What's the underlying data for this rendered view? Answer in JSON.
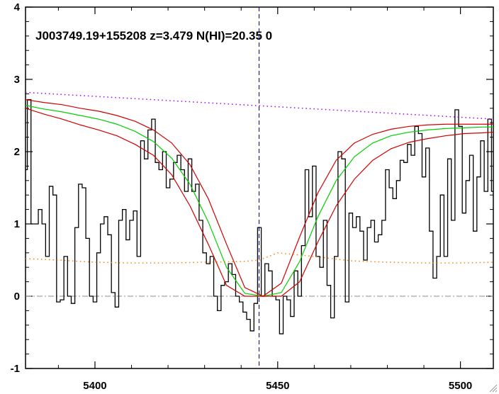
{
  "chart_data": {
    "type": "line",
    "title": "J003749.19+155208 z=3.479 N(HI)=20.35 0",
    "xlabel": "",
    "ylabel": "",
    "xlim": [
      5381,
      5509
    ],
    "ylim": [
      -1.0,
      4.0
    ],
    "xticks": [
      "5400",
      "5450",
      "5500"
    ],
    "yticks": [
      "-1",
      "0",
      "1",
      "2",
      "3",
      "4"
    ],
    "grid": false,
    "legend": "none",
    "reference_lines": {
      "zero_level": 0,
      "line_center_x": 5444.9
    },
    "colors": {
      "flux": "#000000",
      "model": "#00d000",
      "model_bounds": "#d00000",
      "continuum": "#a000ff",
      "error": "#ff7f00",
      "zero": "#888888",
      "center": "#0000cc"
    },
    "series": [
      {
        "style": "step",
        "x": [
          5381,
          5382,
          5383,
          5384,
          5385,
          5386,
          5387,
          5388,
          5389,
          5390,
          5391,
          5392,
          5393,
          5394,
          5395,
          5396,
          5397,
          5398,
          5399,
          5400,
          5401,
          5402,
          5403,
          5404,
          5405,
          5406,
          5407,
          5408,
          5409,
          5410,
          5411,
          5412,
          5413,
          5414,
          5415,
          5416,
          5417,
          5418,
          5419,
          5420,
          5421,
          5422,
          5423,
          5424,
          5425,
          5426,
          5427,
          5428,
          5429,
          5430,
          5431,
          5432,
          5433,
          5434,
          5435,
          5436,
          5437,
          5438,
          5439,
          5440,
          5441,
          5442,
          5443,
          5444,
          5445,
          5446,
          5447,
          5448,
          5449,
          5450,
          5451,
          5452,
          5453,
          5454,
          5455,
          5456,
          5457,
          5458,
          5459,
          5460,
          5461,
          5462,
          5463,
          5464,
          5465,
          5466,
          5467,
          5468,
          5469,
          5470,
          5471,
          5472,
          5473,
          5474,
          5475,
          5476,
          5477,
          5478,
          5479,
          5480,
          5481,
          5482,
          5483,
          5484,
          5485,
          5486,
          5487,
          5488,
          5489,
          5490,
          5491,
          5492,
          5493,
          5494,
          5495,
          5496,
          5497,
          5498,
          5499,
          5500,
          5501,
          5502,
          5503,
          5504,
          5505,
          5506,
          5507,
          5508,
          5509
        ],
        "y": [
          1.75,
          2.72,
          1.0,
          1.0,
          1.2,
          1.0,
          0.55,
          1.52,
          1.4,
          -0.08,
          -0.05,
          0.55,
          0.0,
          -0.1,
          0.95,
          1.55,
          1.5,
          0.8,
          0.0,
          -0.08,
          0.6,
          1.0,
          1.1,
          0.85,
          0.05,
          -0.15,
          1.05,
          1.2,
          0.78,
          1.05,
          1.18,
          0.55,
          2.15,
          1.9,
          2.3,
          2.45,
          1.85,
          1.75,
          2.0,
          1.5,
          1.62,
          1.85,
          1.95,
          1.75,
          1.45,
          1.9,
          1.45,
          1.55,
          1.05,
          0.6,
          0.45,
          0.55,
          0.0,
          -0.2,
          0.15,
          0.2,
          0.45,
          0.3,
          0.0,
          -0.08,
          -0.22,
          -0.32,
          -0.48,
          -0.1,
          0.95,
          0.0,
          0.45,
          0.35,
          0.0,
          -0.05,
          -0.52,
          0.0,
          -0.05,
          -0.28,
          0.35,
          0.0,
          0.7,
          1.75,
          1.1,
          1.8,
          0.55,
          0.4,
          1.05,
          0.15,
          -0.3,
          0.55,
          2.0,
          1.9,
          -0.08,
          1.15,
          0.95,
          1.1,
          0.9,
          0.5,
          0.95,
          1.05,
          0.75,
          0.85,
          1.05,
          1.75,
          1.5,
          1.35,
          1.6,
          1.88,
          1.85,
          2.1,
          1.95,
          2.35,
          2.25,
          1.65,
          2.05,
          0.9,
          0.25,
          0.55,
          1.4,
          0.55,
          1.9,
          1.05,
          2.58,
          2.35,
          1.15,
          1.6,
          1.95,
          0.9,
          1.65,
          2.15,
          1.45,
          2.45,
          1.45
        ]
      },
      {
        "style": "line",
        "x": [
          5381,
          5386,
          5391,
          5396,
          5401,
          5406,
          5411,
          5416,
          5421,
          5426,
          5431,
          5436,
          5441,
          5446,
          5451,
          5456,
          5461,
          5466,
          5471,
          5476,
          5481,
          5486,
          5491,
          5496,
          5501,
          5506,
          5509
        ],
        "y": [
          2.64,
          2.59,
          2.55,
          2.5,
          2.45,
          2.38,
          2.28,
          2.14,
          1.91,
          1.55,
          1.03,
          0.4,
          0.04,
          0.0,
          0.05,
          0.48,
          1.1,
          1.6,
          1.93,
          2.12,
          2.22,
          2.27,
          2.3,
          2.32,
          2.33,
          2.34,
          2.34
        ]
      },
      {
        "style": "line",
        "x": [
          5381,
          5386,
          5391,
          5396,
          5401,
          5406,
          5411,
          5416,
          5421,
          5426,
          5431,
          5436,
          5441,
          5446,
          5451,
          5456,
          5461,
          5466,
          5471,
          5476,
          5481,
          5486,
          5491,
          5496,
          5501,
          5506,
          5509
        ],
        "y": [
          2.72,
          2.68,
          2.65,
          2.6,
          2.56,
          2.5,
          2.42,
          2.3,
          2.12,
          1.82,
          1.35,
          0.72,
          0.12,
          0.0,
          0.18,
          0.82,
          1.43,
          1.88,
          2.12,
          2.24,
          2.31,
          2.35,
          2.37,
          2.38,
          2.38,
          2.38,
          2.38
        ]
      },
      {
        "style": "line",
        "x": [
          5381,
          5386,
          5391,
          5396,
          5401,
          5406,
          5411,
          5416,
          5421,
          5426,
          5431,
          5436,
          5441,
          5446,
          5451,
          5456,
          5461,
          5466,
          5471,
          5476,
          5481,
          5486,
          5491,
          5496,
          5501,
          5506,
          5509
        ],
        "y": [
          2.6,
          2.52,
          2.45,
          2.37,
          2.3,
          2.22,
          2.1,
          1.95,
          1.68,
          1.25,
          0.72,
          0.15,
          0.0,
          0.0,
          0.0,
          0.2,
          0.75,
          1.25,
          1.62,
          1.88,
          2.04,
          2.13,
          2.18,
          2.22,
          2.25,
          2.26,
          2.27
        ]
      },
      {
        "style": "dotted",
        "x": [
          5381,
          5509
        ],
        "y": [
          2.82,
          2.45
        ]
      },
      {
        "style": "dotted",
        "x": [
          5381,
          5390,
          5400,
          5410,
          5420,
          5430,
          5440,
          5445,
          5450,
          5460,
          5470,
          5480,
          5490,
          5500,
          5509
        ],
        "y": [
          0.52,
          0.5,
          0.47,
          0.46,
          0.46,
          0.47,
          0.48,
          0.5,
          0.6,
          0.55,
          0.49,
          0.47,
          0.46,
          0.46,
          0.47
        ]
      }
    ]
  }
}
